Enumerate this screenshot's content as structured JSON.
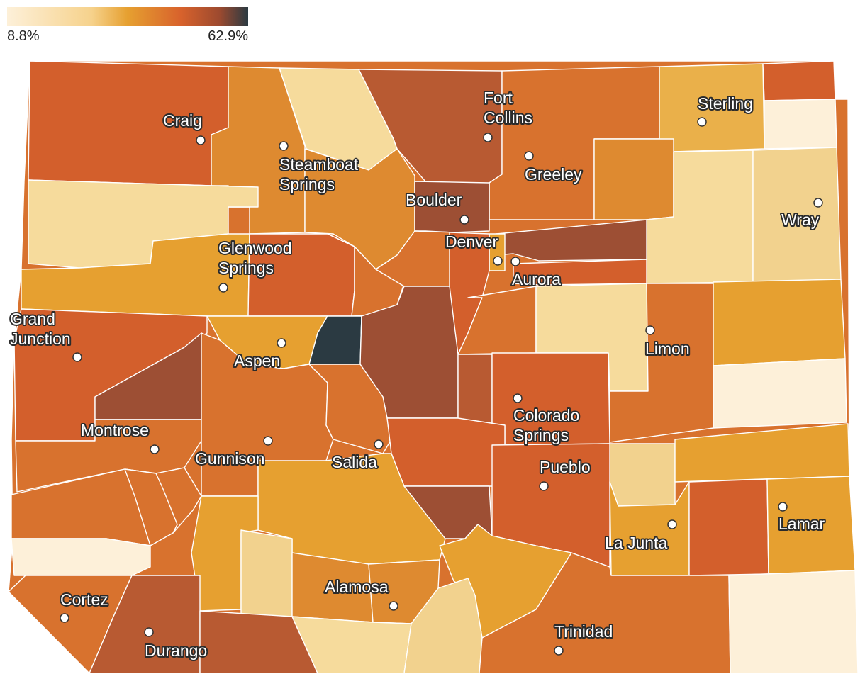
{
  "legend": {
    "min_label": "8.8%",
    "max_label": "62.9%"
  },
  "colors": {
    "c1": "#fdf0d9",
    "c2": "#f6db9c",
    "c3": "#f2d28e",
    "c4": "#eab04a",
    "c5": "#e6a030",
    "c6": "#de8a30",
    "c7": "#d8722e",
    "c8": "#d35f2c",
    "c9": "#b85a32",
    "c10": "#9d4f34",
    "c11": "#2b3a42"
  },
  "cities": [
    {
      "name": "Craig"
    },
    {
      "name": "Steamboat Springs",
      "lines": [
        "Steamboat",
        "Springs"
      ]
    },
    {
      "name": "Fort Collins",
      "lines": [
        "Fort",
        "Collins"
      ]
    },
    {
      "name": "Greeley"
    },
    {
      "name": "Sterling"
    },
    {
      "name": "Boulder"
    },
    {
      "name": "Denver"
    },
    {
      "name": "Aurora"
    },
    {
      "name": "Wray"
    },
    {
      "name": "Glenwood Springs",
      "lines": [
        "Glenwood",
        "Springs"
      ]
    },
    {
      "name": "Grand Junction",
      "lines": [
        "Grand",
        "Junction"
      ]
    },
    {
      "name": "Aspen"
    },
    {
      "name": "Limon"
    },
    {
      "name": "Colorado Springs",
      "lines": [
        "Colorado",
        "Springs"
      ]
    },
    {
      "name": "Montrose"
    },
    {
      "name": "Gunnison"
    },
    {
      "name": "Salida"
    },
    {
      "name": "Pueblo"
    },
    {
      "name": "La Junta"
    },
    {
      "name": "Lamar"
    },
    {
      "name": "Alamosa"
    },
    {
      "name": "Cortez"
    },
    {
      "name": "Durango"
    },
    {
      "name": "Trinidad"
    }
  ]
}
